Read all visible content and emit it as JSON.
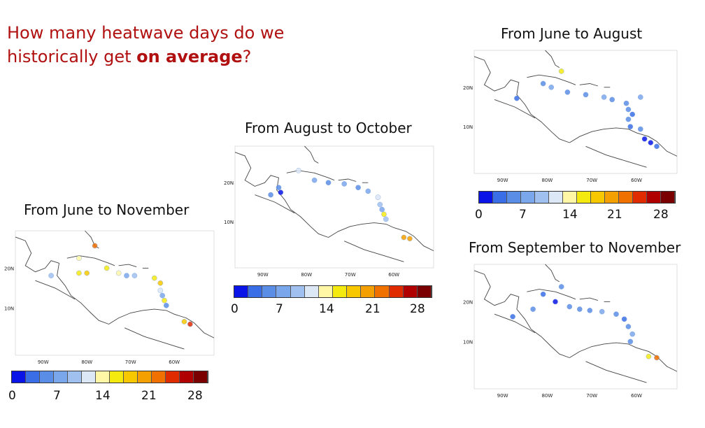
{
  "question": {
    "part1": "How many heatwave days do we historically get ",
    "bold": "on average",
    "part2": "?"
  },
  "panels": [
    {
      "id": "jun-nov",
      "title": "From June to November",
      "lon_labels": [
        "90W",
        "80W",
        "70W",
        "60W"
      ],
      "lat_labels": [
        "20N",
        "10N"
      ]
    },
    {
      "id": "aug-oct",
      "title": "From August to October",
      "lon_labels": [
        "90W",
        "80W",
        "70W",
        "60W"
      ],
      "lat_labels": [
        "20N",
        "10N"
      ]
    },
    {
      "id": "jun-aug",
      "title": "From June to August",
      "lon_labels": [
        "90W",
        "80W",
        "70W",
        "60W"
      ],
      "lat_labels": [
        "20N",
        "10N"
      ]
    },
    {
      "id": "sep-nov",
      "title": "From September to November",
      "lon_labels": [
        "90W",
        "80W",
        "70W",
        "60W"
      ],
      "lat_labels": [
        "20N",
        "10N"
      ]
    }
  ],
  "colorbar": {
    "colors": [
      "#0a14e6",
      "#3a6ee6",
      "#5a8ee6",
      "#7aa6ec",
      "#a0c0f0",
      "#dce8f6",
      "#fff7a6",
      "#f5ea10",
      "#f7c800",
      "#f4a000",
      "#f07000",
      "#e02a00",
      "#b00000",
      "#7a0000"
    ],
    "tick_labels": [
      "0",
      "7",
      "14",
      "21",
      "28"
    ]
  }
}
